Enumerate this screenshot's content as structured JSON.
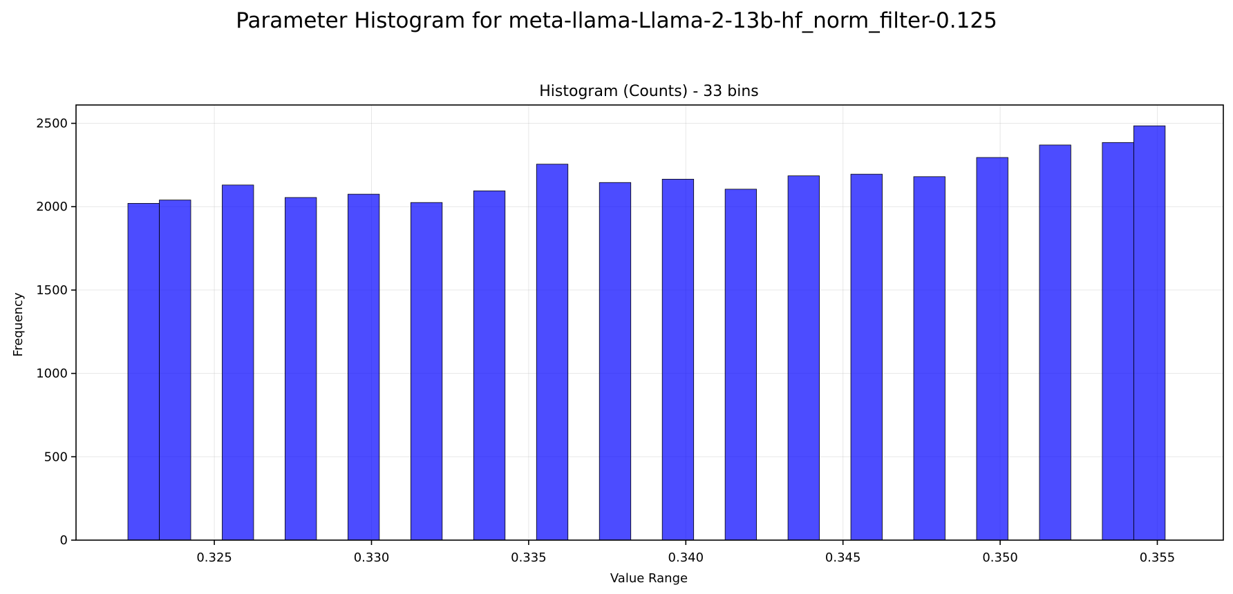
{
  "figure": {
    "suptitle": "Parameter Histogram for meta-llama-Llama-2-13b-hf_norm_filter-0.125"
  },
  "chart_data": {
    "type": "bar",
    "title": "Histogram (Counts) - 33 bins",
    "xlabel": "Value Range",
    "ylabel": "Frequency",
    "xlim": [
      0.3206,
      0.3571
    ],
    "ylim": [
      0,
      2610
    ],
    "grid": true,
    "bar_color": "#0000ff",
    "bar_edge_color": "#000000",
    "xticks": [
      "0.325",
      "0.330",
      "0.335",
      "0.340",
      "0.345",
      "0.350",
      "0.355"
    ],
    "yticks": [
      "0",
      "500",
      "1000",
      "1500",
      "2000",
      "2500"
    ],
    "bins": [
      {
        "start": 0.32225,
        "end": 0.32325,
        "count": 2020
      },
      {
        "start": 0.32325,
        "end": 0.32425,
        "count": 2040
      },
      {
        "start": 0.32525,
        "end": 0.32625,
        "count": 2130
      },
      {
        "start": 0.32725,
        "end": 0.32825,
        "count": 2055
      },
      {
        "start": 0.32925,
        "end": 0.33025,
        "count": 2075
      },
      {
        "start": 0.33125,
        "end": 0.33225,
        "count": 2025
      },
      {
        "start": 0.33325,
        "end": 0.33425,
        "count": 2095
      },
      {
        "start": 0.33525,
        "end": 0.33625,
        "count": 2255
      },
      {
        "start": 0.33725,
        "end": 0.33825,
        "count": 2145
      },
      {
        "start": 0.33925,
        "end": 0.34025,
        "count": 2165
      },
      {
        "start": 0.34125,
        "end": 0.34225,
        "count": 2105
      },
      {
        "start": 0.34325,
        "end": 0.34425,
        "count": 2185
      },
      {
        "start": 0.34525,
        "end": 0.34625,
        "count": 2195
      },
      {
        "start": 0.34725,
        "end": 0.34825,
        "count": 2180
      },
      {
        "start": 0.34925,
        "end": 0.35025,
        "count": 2295
      },
      {
        "start": 0.35125,
        "end": 0.35225,
        "count": 2370
      },
      {
        "start": 0.35325,
        "end": 0.35425,
        "count": 2385
      },
      {
        "start": 0.35425,
        "end": 0.35525,
        "count": 2485
      }
    ]
  }
}
